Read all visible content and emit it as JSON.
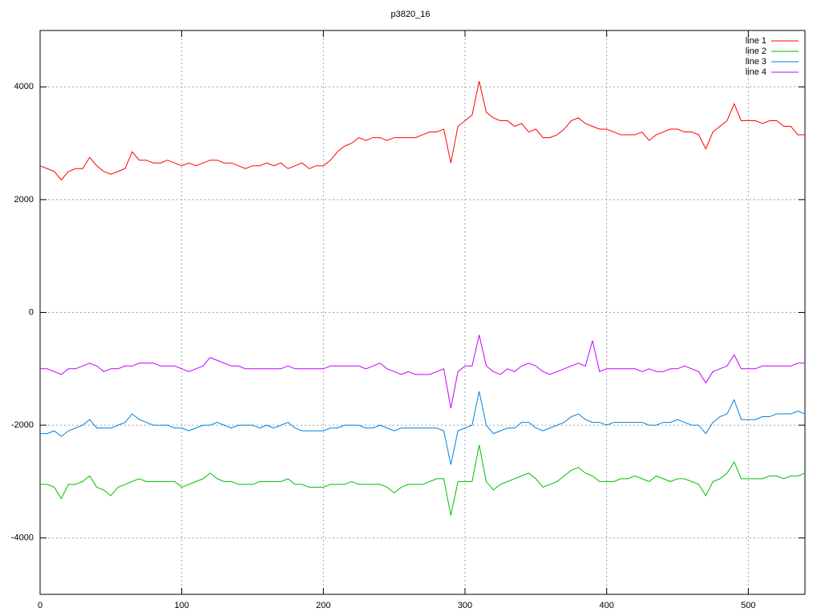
{
  "chart_data": {
    "type": "line",
    "title": "p3820_16",
    "x": [
      0,
      5,
      10,
      15,
      20,
      25,
      30,
      35,
      40,
      45,
      50,
      55,
      60,
      65,
      70,
      75,
      80,
      85,
      90,
      95,
      100,
      105,
      110,
      115,
      120,
      125,
      130,
      135,
      140,
      145,
      150,
      155,
      160,
      165,
      170,
      175,
      180,
      185,
      190,
      195,
      200,
      205,
      210,
      215,
      220,
      225,
      230,
      235,
      240,
      245,
      250,
      255,
      260,
      265,
      270,
      275,
      280,
      285,
      290,
      295,
      300,
      305,
      310,
      315,
      320,
      325,
      330,
      335,
      340,
      345,
      350,
      355,
      360,
      365,
      370,
      375,
      380,
      385,
      390,
      395,
      400,
      405,
      410,
      415,
      420,
      425,
      430,
      435,
      440,
      445,
      450,
      455,
      460,
      465,
      470,
      475,
      480,
      485,
      490,
      495,
      500,
      505,
      510,
      515,
      520,
      525,
      530,
      535,
      540
    ],
    "series": [
      {
        "name": "line 1",
        "color": "#ff0000",
        "values": [
          2600,
          2550,
          2500,
          2350,
          2500,
          2550,
          2550,
          2750,
          2600,
          2500,
          2450,
          2500,
          2550,
          2850,
          2700,
          2700,
          2650,
          2650,
          2700,
          2650,
          2600,
          2650,
          2600,
          2650,
          2700,
          2700,
          2650,
          2650,
          2600,
          2550,
          2600,
          2600,
          2650,
          2600,
          2650,
          2550,
          2600,
          2650,
          2550,
          2600,
          2600,
          2700,
          2850,
          2950,
          3000,
          3100,
          3050,
          3100,
          3100,
          3050,
          3100,
          3100,
          3100,
          3100,
          3150,
          3200,
          3200,
          3250,
          2650,
          3300,
          3400,
          3500,
          4100,
          3550,
          3450,
          3400,
          3400,
          3300,
          3350,
          3200,
          3250,
          3100,
          3100,
          3150,
          3250,
          3400,
          3450,
          3350,
          3300,
          3250,
          3250,
          3200,
          3150,
          3150,
          3150,
          3200,
          3050,
          3150,
          3200,
          3250,
          3250,
          3200,
          3200,
          3150,
          2900,
          3200,
          3300,
          3400,
          3700,
          3400,
          3400,
          3400,
          3350,
          3400,
          3400,
          3300,
          3300,
          3150,
          3150
        ]
      },
      {
        "name": "line 2",
        "color": "#00c000",
        "values": [
          -3050,
          -3050,
          -3100,
          -3300,
          -3050,
          -3050,
          -3000,
          -2900,
          -3100,
          -3150,
          -3250,
          -3100,
          -3050,
          -3000,
          -2950,
          -3000,
          -3000,
          -3000,
          -3000,
          -3000,
          -3100,
          -3050,
          -3000,
          -2950,
          -2850,
          -2950,
          -3000,
          -3000,
          -3050,
          -3050,
          -3050,
          -3000,
          -3000,
          -3000,
          -3000,
          -2950,
          -3050,
          -3050,
          -3100,
          -3100,
          -3100,
          -3050,
          -3050,
          -3050,
          -3000,
          -3050,
          -3050,
          -3050,
          -3050,
          -3100,
          -3200,
          -3100,
          -3050,
          -3050,
          -3050,
          -3000,
          -2950,
          -2950,
          -3600,
          -3000,
          -3000,
          -3000,
          -2350,
          -3000,
          -3150,
          -3050,
          -3000,
          -2950,
          -2900,
          -2850,
          -2950,
          -3100,
          -3050,
          -3000,
          -2900,
          -2800,
          -2750,
          -2850,
          -2900,
          -3000,
          -3000,
          -3000,
          -2950,
          -2950,
          -2900,
          -2950,
          -3000,
          -2900,
          -2950,
          -3000,
          -2950,
          -2950,
          -3000,
          -3050,
          -3250,
          -3000,
          -2950,
          -2850,
          -2650,
          -2950,
          -2950,
          -2950,
          -2950,
          -2900,
          -2900,
          -2950,
          -2900,
          -2900,
          -2850
        ]
      },
      {
        "name": "line 3",
        "color": "#0080e0",
        "values": [
          -2150,
          -2150,
          -2100,
          -2200,
          -2100,
          -2050,
          -2000,
          -1900,
          -2050,
          -2050,
          -2050,
          -2000,
          -1950,
          -1800,
          -1900,
          -1950,
          -2000,
          -2000,
          -2000,
          -2050,
          -2050,
          -2100,
          -2050,
          -2000,
          -2000,
          -1950,
          -2000,
          -2050,
          -2000,
          -2000,
          -2000,
          -2050,
          -2000,
          -2050,
          -2000,
          -1950,
          -2050,
          -2100,
          -2100,
          -2100,
          -2100,
          -2050,
          -2050,
          -2000,
          -2000,
          -2000,
          -2050,
          -2050,
          -2000,
          -2050,
          -2100,
          -2050,
          -2050,
          -2050,
          -2050,
          -2050,
          -2050,
          -2100,
          -2700,
          -2100,
          -2050,
          -2000,
          -1400,
          -2000,
          -2150,
          -2100,
          -2050,
          -2050,
          -1950,
          -1950,
          -2050,
          -2100,
          -2050,
          -2000,
          -1950,
          -1850,
          -1800,
          -1900,
          -1950,
          -1950,
          -2000,
          -1950,
          -1950,
          -1950,
          -1950,
          -1950,
          -2000,
          -2000,
          -1950,
          -1950,
          -1900,
          -1950,
          -2000,
          -2000,
          -2150,
          -1950,
          -1850,
          -1800,
          -1550,
          -1900,
          -1900,
          -1900,
          -1850,
          -1850,
          -1800,
          -1800,
          -1800,
          -1750,
          -1800
        ]
      },
      {
        "name": "line 4",
        "color": "#c000ff",
        "values": [
          -1000,
          -1000,
          -1050,
          -1100,
          -1000,
          -1000,
          -950,
          -900,
          -950,
          -1050,
          -1000,
          -1000,
          -950,
          -950,
          -900,
          -900,
          -900,
          -950,
          -950,
          -950,
          -1000,
          -1050,
          -1000,
          -950,
          -800,
          -850,
          -900,
          -950,
          -950,
          -1000,
          -1000,
          -1000,
          -1000,
          -1000,
          -1000,
          -950,
          -1000,
          -1000,
          -1000,
          -1000,
          -1000,
          -950,
          -950,
          -950,
          -950,
          -950,
          -1000,
          -950,
          -900,
          -1000,
          -1050,
          -1100,
          -1050,
          -1100,
          -1100,
          -1100,
          -1050,
          -1000,
          -1700,
          -1050,
          -950,
          -950,
          -400,
          -950,
          -1050,
          -1100,
          -1000,
          -1050,
          -950,
          -900,
          -950,
          -1050,
          -1100,
          -1050,
          -1000,
          -950,
          -900,
          -950,
          -500,
          -1050,
          -1000,
          -1000,
          -1000,
          -1000,
          -1000,
          -1050,
          -1000,
          -1050,
          -1050,
          -1000,
          -1000,
          -950,
          -1000,
          -1050,
          -1250,
          -1050,
          -1000,
          -950,
          -750,
          -1000,
          -1000,
          -1000,
          -950,
          -950,
          -950,
          -950,
          -950,
          -900,
          -900
        ]
      }
    ],
    "xlim": [
      0,
      540
    ],
    "ylim": [
      -5000,
      5000
    ],
    "xticks": [
      0,
      100,
      200,
      300,
      400,
      500
    ],
    "yticks": [
      -4000,
      -2000,
      0,
      2000,
      4000
    ],
    "grid": true,
    "legend": "top-right"
  }
}
